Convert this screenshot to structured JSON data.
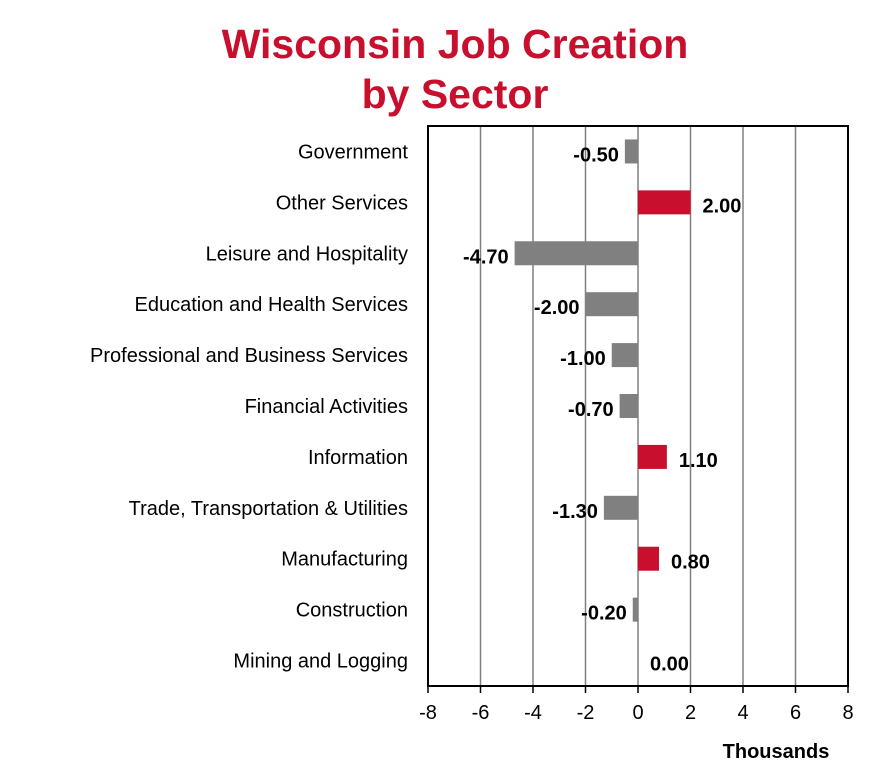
{
  "title_line1": "Wisconsin Job Creation",
  "title_line2": "by Sector",
  "colors": {
    "title": "#c8102e",
    "positive": "#c8102e",
    "negative": "#808080",
    "grid": "#808080",
    "frame": "#000000"
  },
  "chart_data": {
    "type": "bar",
    "orientation": "horizontal",
    "title": "Wisconsin Job Creation by Sector",
    "xlabel": "Thousands",
    "ylabel": "",
    "xlim": [
      -8,
      8
    ],
    "xticks": [
      -8,
      -6,
      -4,
      -2,
      0,
      2,
      4,
      6,
      8
    ],
    "grid": true,
    "categories": [
      "Government",
      "Other Services",
      "Leisure and Hospitality",
      "Education and Health Services",
      "Professional and Business Services",
      "Financial Activities",
      "Information",
      "Trade, Transportation & Utilities",
      "Manufacturing",
      "Construction",
      "Mining and Logging"
    ],
    "values": [
      -0.5,
      2.0,
      -4.7,
      -2.0,
      -1.0,
      -0.7,
      1.1,
      -1.3,
      0.8,
      -0.2,
      0.0
    ],
    "value_labels": [
      "-0.50",
      "2.00",
      "-4.70",
      "-2.00",
      "-1.00",
      "-0.70",
      "1.10",
      "-1.30",
      "0.80",
      "-0.20",
      "0.00"
    ]
  }
}
